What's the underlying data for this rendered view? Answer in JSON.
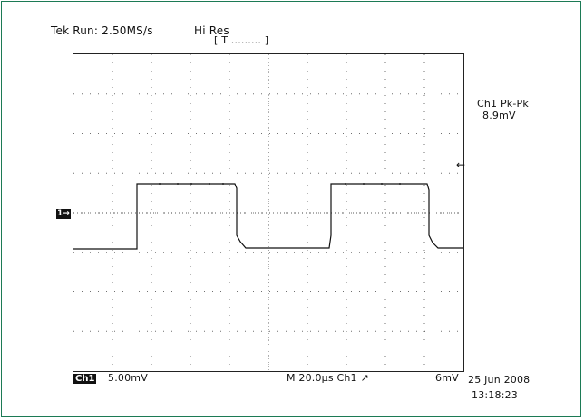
{
  "header": {
    "run_status": "Tek Run: 2.50MS/s",
    "acq_mode": "Hi Res",
    "trigger_bar": "[ T ......... ]"
  },
  "measurement": {
    "label": "Ch1 Pk-Pk",
    "value": "8.9mV"
  },
  "footer": {
    "channel_badge": "Ch1",
    "volts_per_div": "5.00mV",
    "timebase": "M 20.0µs  Ch1 ↗",
    "trigger_level": "6mV",
    "date": "25 Jun 2008",
    "time": "13:18:23"
  },
  "channel_marker": "1→",
  "trigger_arrow": "←",
  "colors": {
    "frame_border": "#1c7a55",
    "trace": "#111111",
    "grid": "#333333"
  }
}
